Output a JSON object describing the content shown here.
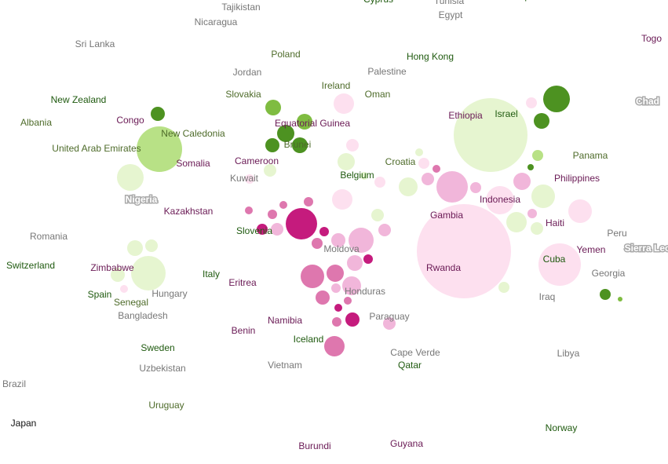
{
  "labels": [
    "Tajikistan",
    "Cyprus",
    "Tunisia",
    "Egypt",
    "Mozambique",
    "Togo",
    "Nicaragua",
    "Sri Lanka",
    "Poland",
    "Hong Kong",
    "Jordan",
    "Palestine",
    "Ireland",
    "Slovakia",
    "Oman",
    "New Zealand",
    "Chad",
    "Ethiopia",
    "Israel",
    "Congo",
    "Albania",
    "Equatorial Guinea",
    "New Caledonia",
    "Brunei",
    "United Arab Emirates",
    "Somalia",
    "Panama",
    "Cameroon",
    "Croatia",
    "Kuwait",
    "Belgium",
    "Philippines",
    "Nigeria",
    "Indonesia",
    "Kazakhstan",
    "Gambia",
    "Haiti",
    "Slovenia",
    "Peru",
    "Romania",
    "Sierra Leone",
    "Moldova",
    "Yemen",
    "Cuba",
    "Switzerland",
    "Zimbabwe",
    "Rwanda",
    "Italy",
    "Georgia",
    "Eritrea",
    "Honduras",
    "Spain",
    "Hungary",
    "Senegal",
    "Iraq",
    "Bangladesh",
    "Paraguay",
    "Namibia",
    "Benin",
    "Iceland",
    "Sweden",
    "Cape Verde",
    "Libya",
    "Vietnam",
    "Qatar",
    "Uzbekistan",
    "Brazil",
    "Uruguay",
    "Japan",
    "Norway",
    "Burundi",
    "Guyana"
  ]
}
